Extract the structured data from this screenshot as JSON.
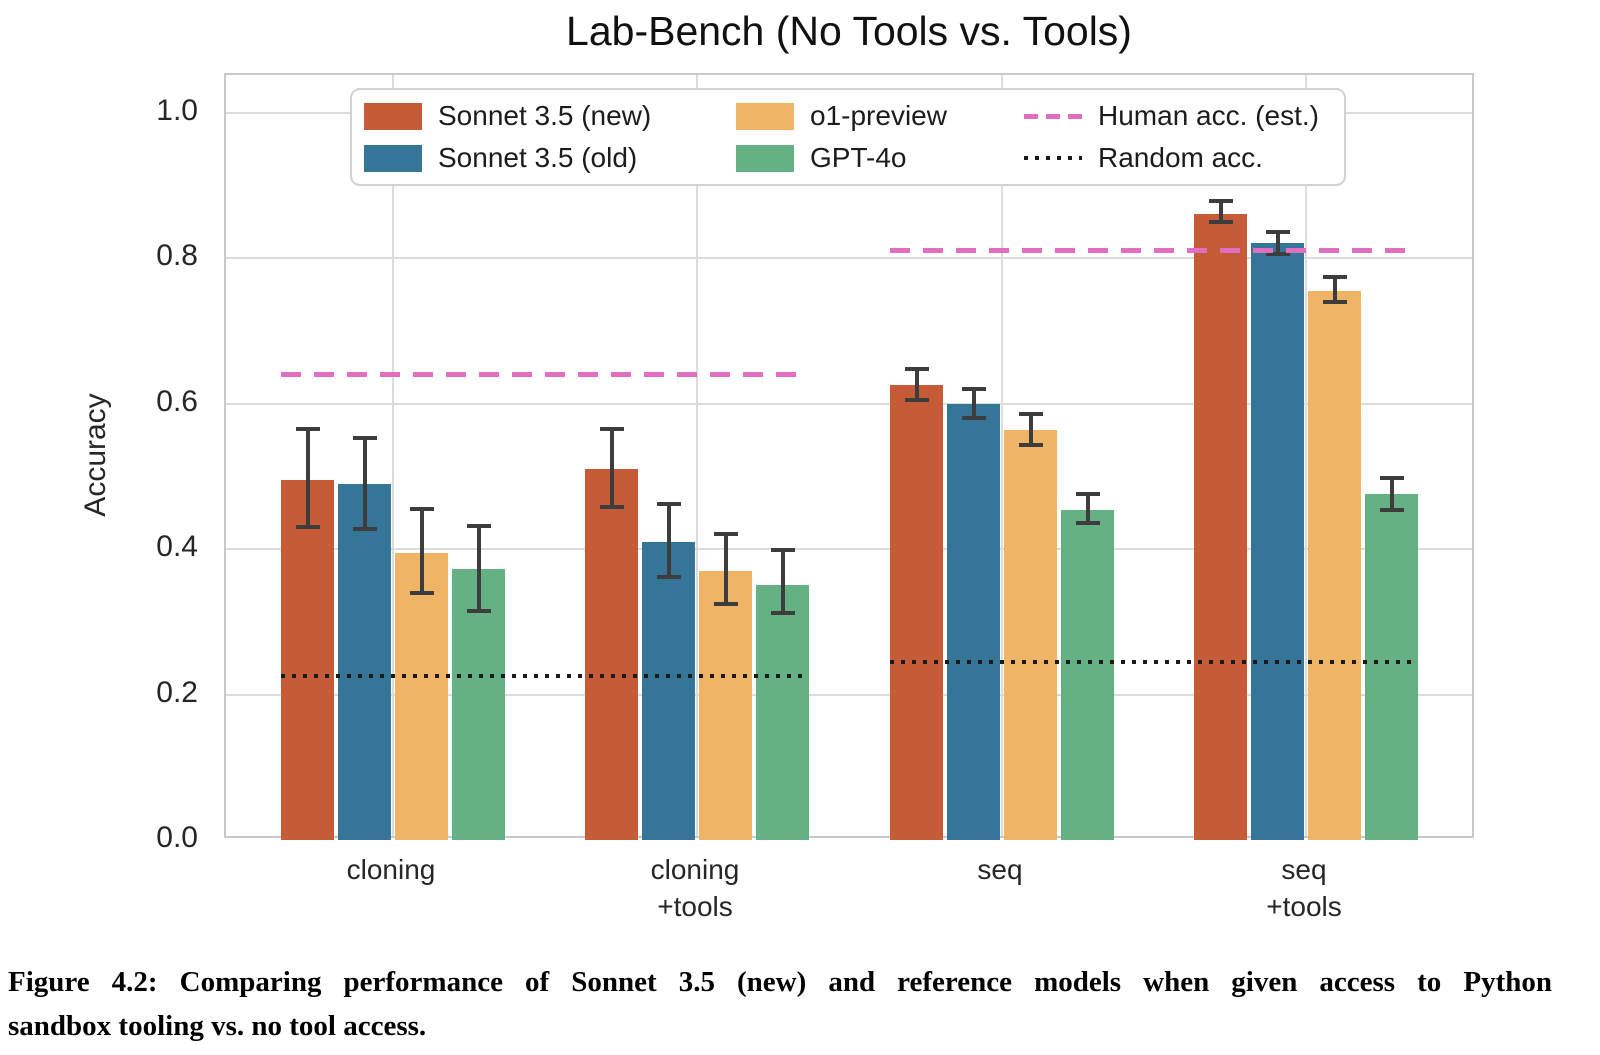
{
  "chart_data": {
    "type": "bar",
    "title": "Lab-Bench (No Tools vs. Tools)",
    "ylabel": "Accuracy",
    "xlabel": "",
    "ylim": [
      0,
      1.05
    ],
    "yticks": [
      0.0,
      0.2,
      0.4,
      0.6,
      0.8,
      1.0
    ],
    "grid": "both",
    "legend_position": "upper center",
    "categories": [
      [
        "cloning"
      ],
      [
        "cloning",
        "+tools"
      ],
      [
        "seq"
      ],
      [
        "seq",
        "+tools"
      ]
    ],
    "series": [
      {
        "name": "Sonnet 3.5 (new)",
        "color": "#c65c37",
        "values": [
          0.495,
          0.51,
          0.625,
          0.861
        ],
        "err_low": [
          0.43,
          0.458,
          0.605,
          0.849
        ],
        "err_high": [
          0.565,
          0.565,
          0.647,
          0.878
        ]
      },
      {
        "name": "Sonnet 3.5 (old)",
        "color": "#347598",
        "values": [
          0.49,
          0.41,
          0.6,
          0.82
        ],
        "err_low": [
          0.428,
          0.362,
          0.58,
          0.805
        ],
        "err_high": [
          0.553,
          0.462,
          0.62,
          0.836
        ]
      },
      {
        "name": "o1-preview",
        "color": "#f0b466",
        "values": [
          0.395,
          0.37,
          0.563,
          0.755
        ],
        "err_low": [
          0.34,
          0.325,
          0.543,
          0.739
        ],
        "err_high": [
          0.455,
          0.421,
          0.586,
          0.774
        ]
      },
      {
        "name": "GPT-4o",
        "color": "#64b183",
        "values": [
          0.372,
          0.351,
          0.454,
          0.475
        ],
        "err_low": [
          0.315,
          0.312,
          0.436,
          0.453
        ],
        "err_high": [
          0.432,
          0.398,
          0.476,
          0.498
        ]
      }
    ],
    "reference_lines": [
      {
        "name": "Human acc. (est.)",
        "style": "dashed",
        "color": "#e16ec0",
        "segments": [
          {
            "groups": [
              0,
              1
            ],
            "value": 0.64
          },
          {
            "groups": [
              2,
              3
            ],
            "value": 0.81
          }
        ]
      },
      {
        "name": "Random acc.",
        "style": "dotted",
        "color": "#1a1a1a",
        "segments": [
          {
            "groups": [
              0,
              1
            ],
            "value": 0.225
          },
          {
            "groups": [
              2,
              3
            ],
            "value": 0.245
          }
        ]
      }
    ]
  },
  "caption": {
    "line1": "Figure 4.2: Comparing performance of Sonnet 3.5 (new) and reference models when given access to Python",
    "line2": "sandbox tooling vs. no tool access."
  }
}
